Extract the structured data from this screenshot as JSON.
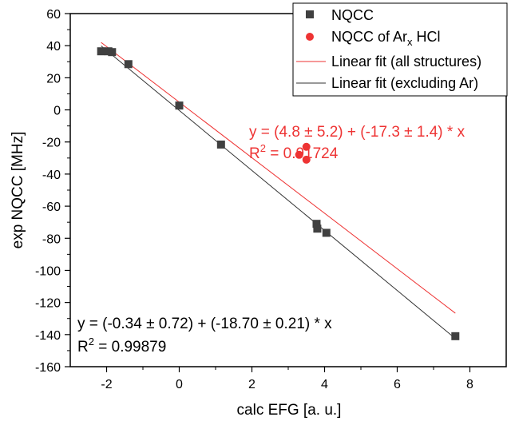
{
  "chart_data": {
    "type": "scatter",
    "xlabel": "calc EFG [a. u.]",
    "ylabel": "exp NQCC [MHz]",
    "xlim": [
      -3,
      9
    ],
    "ylim": [
      -160,
      60
    ],
    "xticks": [
      -2,
      0,
      2,
      4,
      6,
      8
    ],
    "yticks": [
      60,
      40,
      20,
      0,
      -20,
      -40,
      -60,
      -80,
      -100,
      -120,
      -140,
      -160
    ],
    "xtick_labels": [
      "-2",
      "0",
      "2",
      "4",
      "6",
      "8"
    ],
    "ytick_labels": [
      "60",
      "40",
      "20",
      "0",
      "-20",
      "-40",
      "-60",
      "-80",
      "-100",
      "-120",
      "-140",
      "-160"
    ],
    "grid": false,
    "legend_position": "top-right",
    "series": [
      {
        "name": "NQCC",
        "marker": "square",
        "color": "#404040",
        "points": [
          [
            -2.15,
            36.5
          ],
          [
            -1.95,
            36.5
          ],
          [
            -1.85,
            36
          ],
          [
            -1.4,
            28.5
          ],
          [
            0.0,
            2.7
          ],
          [
            1.15,
            -21.6
          ],
          [
            3.78,
            -71.0
          ],
          [
            3.8,
            -74.0
          ],
          [
            4.05,
            -76.6
          ],
          [
            7.6,
            -141.0
          ]
        ]
      },
      {
        "name": "NQCC of Ar<sub>x</sub> HCl",
        "marker": "circle",
        "color": "#ee3333",
        "points": [
          [
            3.3,
            -28.0
          ],
          [
            3.5,
            -23.0
          ],
          [
            3.5,
            -31.0
          ]
        ]
      }
    ],
    "fits": [
      {
        "name": "Linear fit (all structures)",
        "color": "#ee3333",
        "intercept": 4.8,
        "slope": -17.3,
        "x_range": [
          -2.15,
          7.6
        ],
        "equation": "y = (4.8 ± 5.2) + (-17.3 ± 1.4) * x",
        "r2_label": "R",
        "r2_value": " = 0.91724"
      },
      {
        "name": "Linear fit (excluding Ar)",
        "color": "#333333",
        "intercept": -0.34,
        "slope": -18.7,
        "x_range": [
          -2.15,
          7.6
        ],
        "equation": "y = (-0.34 ± 0.72) + (-18.70 ± 0.21) * x",
        "r2_label": "R",
        "r2_value": " = 0.99879"
      }
    ],
    "legend": [
      "NQCC",
      "NQCC of Ar",
      "x",
      " HCl",
      "Linear fit (all structures)",
      "Linear fit (excluding Ar)"
    ]
  }
}
